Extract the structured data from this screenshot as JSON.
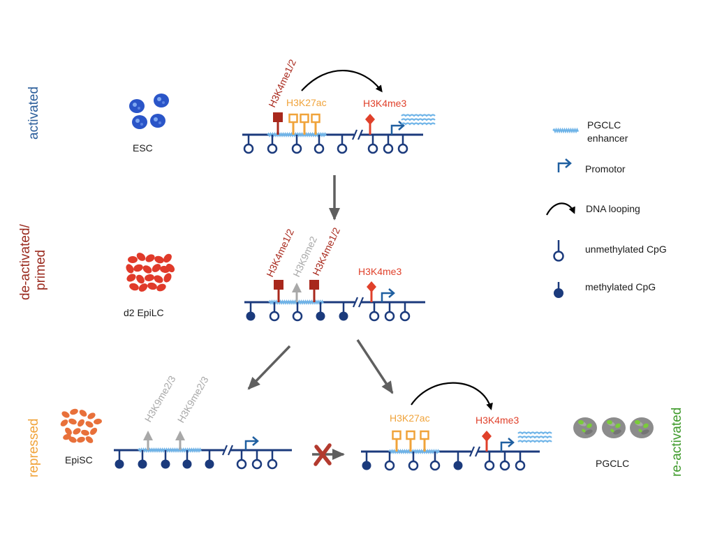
{
  "colors": {
    "dna": "#1b3a7c",
    "promoter": "#1f5fa0",
    "enhancer": "#6fb4e8",
    "h3k4me12": "#a8281c",
    "h3k27ac": "#f0a33a",
    "h3k4me3": "#e0402a",
    "h3k9": "#a8a8a8",
    "arrow_gray": "#5f5f5f",
    "block_x": "#b33a2e",
    "activated": "#2a5d9a",
    "primed": "#9a2a1e",
    "repressed": "#f0a33a",
    "reactivated": "#3e9a2a",
    "esc": "#2a55c8",
    "epilc": "#e03a2a",
    "episc": "#e8703a",
    "pgclc_gray": "#8c8c8c",
    "pgclc_green": "#7acc3a"
  },
  "states": {
    "activated": "activated",
    "primed": "de-activated/\nprimed",
    "repressed": "repressed",
    "reactivated": "re-activated"
  },
  "cells": {
    "esc": "ESC",
    "epilc": "d2 EpiLC",
    "episc": "EpiSC",
    "pgclc": "PGCLC"
  },
  "marks": {
    "h3k4me12": "H3K4me1/2",
    "h3k27ac": "H3K27ac",
    "h3k4me3": "H3K4me3",
    "h3k9me2": "H3K9me2",
    "h3k9me23": "H3K9me2/3"
  },
  "legend": {
    "enhancer": "PGCLC\nenhancer",
    "promoter": "Promotor",
    "looping": "DNA looping",
    "unmethylated": "unmethylated CpG",
    "methylated": "methylated CpG"
  },
  "icons": [
    "blue-cell-cluster-icon",
    "red-cell-cluster-icon",
    "orange-cell-cluster-icon",
    "gray-green-cell-cluster-icon",
    "promoter-arrow-icon",
    "dna-looping-arrow-icon",
    "blocked-x-icon"
  ]
}
